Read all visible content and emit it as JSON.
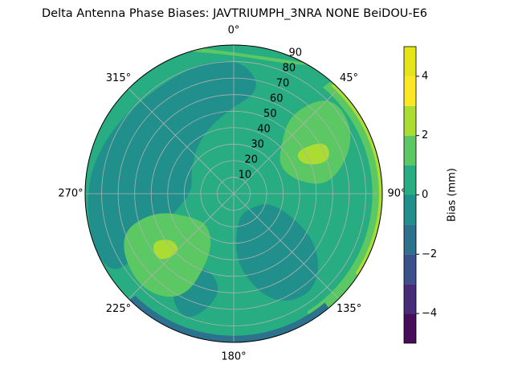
{
  "chart_data": {
    "type": "polar_contour",
    "title": "Delta Antenna Phase Biases: JAVTRIUMPH_3NRA NONE BeiDOU-E6",
    "theta_zero": "N",
    "theta_direction": "clockwise",
    "thetaticks": [
      {
        "value": 0,
        "label": "0°"
      },
      {
        "value": 45,
        "label": "45°"
      },
      {
        "value": 90,
        "label": "90°"
      },
      {
        "value": 135,
        "label": "135°"
      },
      {
        "value": 180,
        "label": "180°"
      },
      {
        "value": 225,
        "label": "225°"
      },
      {
        "value": 270,
        "label": "270°"
      },
      {
        "value": 315,
        "label": "315°"
      }
    ],
    "rlim": [
      0,
      90
    ],
    "rticks": [
      10,
      20,
      30,
      40,
      50,
      60,
      70,
      80,
      90
    ],
    "grid": true,
    "colorbar": {
      "label": "Bias (mm)",
      "lim": [
        -5,
        5
      ],
      "levels": [
        -5,
        -4,
        -3,
        -2,
        -1,
        0,
        1,
        2,
        3,
        4,
        5
      ],
      "colors": [
        "#450d5a",
        "#472c7a",
        "#3b518b",
        "#2c718e",
        "#21908d",
        "#27ad81",
        "#5cc863",
        "#aadc32",
        "#fde725",
        "#e5e419"
      ],
      "ticks": [
        {
          "value": -4,
          "label": "−4"
        },
        {
          "value": -2,
          "label": "−2"
        },
        0,
        2,
        4
      ]
    }
  }
}
